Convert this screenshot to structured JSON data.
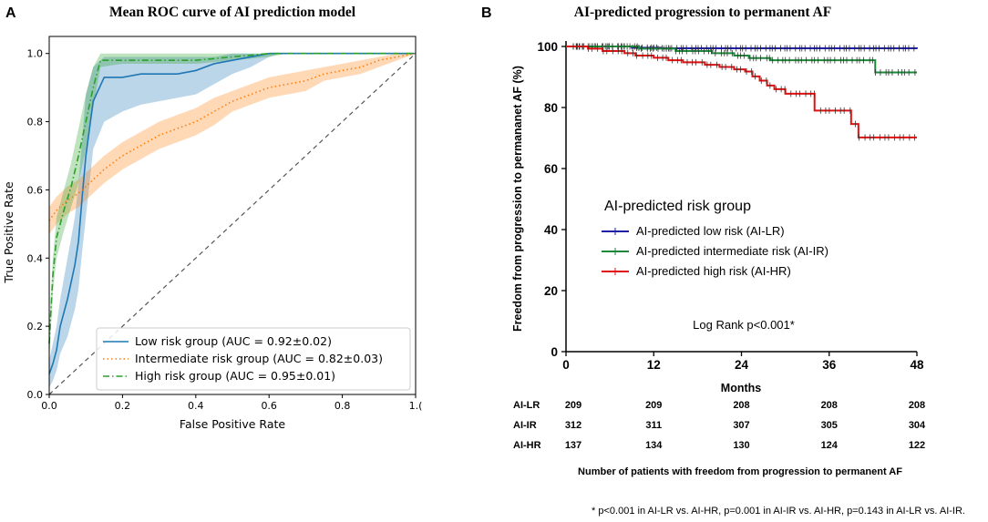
{
  "chart_data": [
    {
      "panel_label": "A",
      "type": "line",
      "title": "Mean ROC curve of AI prediction model",
      "xlabel": "False Positive Rate",
      "ylabel": "True Positive Rate",
      "xlim": [
        0,
        1.0
      ],
      "ylim": [
        0,
        1.05
      ],
      "x_ticks": [
        "0.0",
        "0.2",
        "0.4",
        "0.6",
        "0.8",
        "1.("
      ],
      "y_ticks": [
        "0.0",
        "0.2",
        "0.4",
        "0.6",
        "0.8",
        "1.0"
      ],
      "grid": false,
      "legend_position": "lower-right",
      "series": [
        {
          "name": "Low risk group (AUC = 0.92±0.02)",
          "color": "#1f77b4",
          "style": "solid",
          "x": [
            0,
            0.01,
            0.02,
            0.03,
            0.05,
            0.07,
            0.08,
            0.09,
            0.1,
            0.12,
            0.15,
            0.2,
            0.25,
            0.3,
            0.35,
            0.4,
            0.45,
            0.5,
            0.55,
            0.6,
            0.63,
            1.0
          ],
          "y": [
            0.06,
            0.09,
            0.13,
            0.2,
            0.28,
            0.38,
            0.45,
            0.58,
            0.7,
            0.86,
            0.93,
            0.93,
            0.94,
            0.94,
            0.94,
            0.95,
            0.97,
            0.98,
            0.99,
            1.0,
            1.0,
            1.0
          ],
          "band_upper": [
            0.1,
            0.15,
            0.2,
            0.28,
            0.4,
            0.52,
            0.62,
            0.75,
            0.88,
            0.96,
            0.99,
            0.99,
            0.99,
            0.99,
            0.99,
            0.99,
            0.99,
            1.0,
            1.0,
            1.0,
            1.0,
            1.0
          ],
          "band_lower": [
            0.02,
            0.04,
            0.07,
            0.12,
            0.17,
            0.25,
            0.31,
            0.42,
            0.52,
            0.72,
            0.8,
            0.83,
            0.85,
            0.86,
            0.87,
            0.88,
            0.91,
            0.94,
            0.96,
            0.99,
            1.0,
            1.0
          ]
        },
        {
          "name": "Intermediate risk group (AUC = 0.82±0.03)",
          "color": "#ff7f0e",
          "style": "dotted",
          "x": [
            0,
            0.02,
            0.05,
            0.08,
            0.1,
            0.15,
            0.2,
            0.25,
            0.3,
            0.35,
            0.4,
            0.45,
            0.5,
            0.55,
            0.6,
            0.65,
            0.7,
            0.75,
            0.8,
            0.85,
            0.9,
            0.95,
            1.0
          ],
          "y": [
            0.51,
            0.54,
            0.57,
            0.59,
            0.61,
            0.66,
            0.7,
            0.73,
            0.76,
            0.78,
            0.8,
            0.83,
            0.86,
            0.88,
            0.9,
            0.91,
            0.92,
            0.94,
            0.95,
            0.96,
            0.98,
            0.99,
            1.0
          ],
          "band_upper": [
            0.55,
            0.58,
            0.61,
            0.63,
            0.65,
            0.7,
            0.74,
            0.77,
            0.8,
            0.82,
            0.84,
            0.87,
            0.89,
            0.91,
            0.93,
            0.94,
            0.95,
            0.96,
            0.97,
            0.98,
            0.99,
            1.0,
            1.0
          ],
          "band_lower": [
            0.47,
            0.5,
            0.53,
            0.55,
            0.57,
            0.62,
            0.66,
            0.69,
            0.72,
            0.74,
            0.76,
            0.79,
            0.83,
            0.85,
            0.87,
            0.88,
            0.89,
            0.92,
            0.93,
            0.94,
            0.96,
            0.98,
            1.0
          ]
        },
        {
          "name": "High risk group (AUC = 0.95±0.01)",
          "color": "#2ca02c",
          "style": "dashdot",
          "x": [
            0,
            0.01,
            0.02,
            0.04,
            0.06,
            0.08,
            0.1,
            0.12,
            0.14,
            0.2,
            0.3,
            0.4,
            0.5,
            0.6,
            0.65,
            1.0
          ],
          "y": [
            0.15,
            0.35,
            0.46,
            0.54,
            0.61,
            0.7,
            0.8,
            0.9,
            0.98,
            0.98,
            0.98,
            0.98,
            0.99,
            1.0,
            1.0,
            1.0
          ],
          "band_upper": [
            0.2,
            0.4,
            0.52,
            0.6,
            0.68,
            0.78,
            0.88,
            0.96,
            1.0,
            1.0,
            1.0,
            1.0,
            1.0,
            1.0,
            1.0,
            1.0
          ],
          "band_lower": [
            0.1,
            0.3,
            0.4,
            0.48,
            0.55,
            0.62,
            0.72,
            0.84,
            0.96,
            0.97,
            0.97,
            0.97,
            0.98,
            0.99,
            1.0,
            1.0
          ]
        },
        {
          "name": "chance",
          "color": "#555555",
          "style": "dashed",
          "x": [
            0,
            1
          ],
          "y": [
            0,
            1
          ]
        }
      ]
    },
    {
      "panel_label": "B",
      "type": "line",
      "title": "AI-predicted progression to permanent AF",
      "xlabel": "Months",
      "ylabel": "Freedom from progression to permananet AF (%)",
      "xlim": [
        0,
        48
      ],
      "ylim": [
        0,
        100
      ],
      "x_ticks": [
        "0",
        "12",
        "24",
        "36",
        "48"
      ],
      "y_ticks": [
        "0",
        "20",
        "40",
        "60",
        "80",
        "100"
      ],
      "grid": false,
      "legend_title": "AI-predicted risk group",
      "legend_position": "center",
      "annotation": "Log Rank p<0.001*",
      "series": [
        {
          "name": "AI-predicted low risk (AI-LR)",
          "color": "#1f1fa8",
          "x": [
            0,
            48
          ],
          "y": [
            100,
            99.2
          ],
          "step_points": [
            [
              0,
              100
            ],
            [
              5,
              100
            ],
            [
              9,
              99.6
            ],
            [
              13,
              99.4
            ],
            [
              48,
              99.2
            ]
          ]
        },
        {
          "name": "AI-predicted intermediate risk (AI-IR)",
          "color": "#1a8a3a",
          "step_points": [
            [
              0,
              100
            ],
            [
              6,
              100
            ],
            [
              10,
              99.3
            ],
            [
              15,
              98.5
            ],
            [
              20,
              97.8
            ],
            [
              23,
              97.0
            ],
            [
              25,
              96.2
            ],
            [
              28,
              95.5
            ],
            [
              42,
              95.5
            ],
            [
              42.3,
              91.5
            ],
            [
              48,
              91.5
            ]
          ]
        },
        {
          "name": "AI-predicted high risk (AI-HR)",
          "color": "#e01010",
          "step_points": [
            [
              0,
              100
            ],
            [
              3,
              99.3
            ],
            [
              5,
              98.5
            ],
            [
              8,
              97.8
            ],
            [
              9.5,
              97.0
            ],
            [
              12,
              96.3
            ],
            [
              14,
              95.5
            ],
            [
              16,
              94.8
            ],
            [
              19,
              94.0
            ],
            [
              21,
              93.3
            ],
            [
              23,
              92.5
            ],
            [
              24.5,
              91.8
            ],
            [
              25.5,
              90.2
            ],
            [
              26.5,
              88.8
            ],
            [
              27.5,
              87.2
            ],
            [
              28.5,
              86.0
            ],
            [
              30,
              84.5
            ],
            [
              34,
              79.0
            ],
            [
              39,
              74.6
            ],
            [
              40,
              70.2
            ],
            [
              48,
              70.2
            ]
          ]
        }
      ],
      "risk_table": {
        "caption": "Number of patients with freedom from progression to permanent AF",
        "rows": [
          {
            "label": "AI-LR",
            "values": [
              "209",
              "209",
              "208",
              "208",
              "208"
            ]
          },
          {
            "label": "AI-IR",
            "values": [
              "312",
              "311",
              "307",
              "305",
              "304"
            ]
          },
          {
            "label": "AI-HR",
            "values": [
              "137",
              "134",
              "130",
              "124",
              "122"
            ]
          }
        ]
      },
      "footnote": "* p<0.001 in AI-LR vs. AI-HR,  p=0.001 in AI-IR vs. AI-HR,  p=0.143 in AI-LR vs. AI-IR."
    }
  ]
}
